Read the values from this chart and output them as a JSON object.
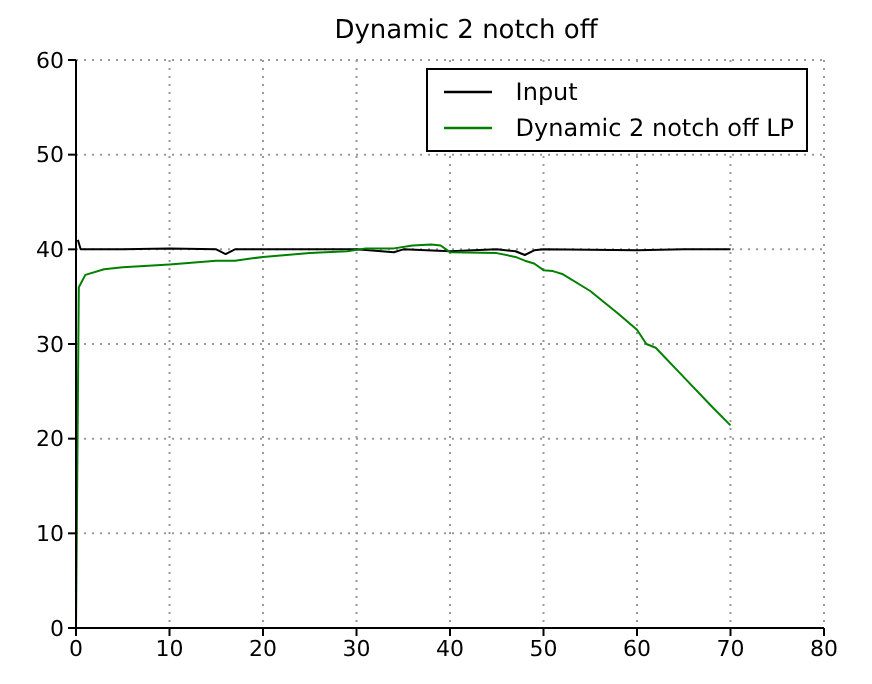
{
  "chart_data": {
    "type": "line",
    "title": "Dynamic 2 notch off",
    "xlim": [
      0,
      80
    ],
    "xticks": [
      0,
      10,
      20,
      30,
      40,
      50,
      60,
      70,
      80
    ],
    "ylim": [
      0,
      60
    ],
    "yticks": [
      0,
      10,
      20,
      30,
      40,
      50,
      60
    ],
    "grid": true,
    "legend": "top right",
    "marker": "none",
    "line_style": "solid",
    "series": [
      {
        "name": "Input",
        "color": "#000000",
        "x": [
          0.2,
          0.5,
          5,
          10,
          15,
          16,
          17,
          25,
          30,
          34,
          35,
          40,
          45,
          47,
          48,
          49,
          50,
          60,
          65,
          70
        ],
        "values": [
          41,
          40,
          40,
          40.1,
          40,
          39.5,
          40,
          40,
          40,
          39.7,
          40,
          39.8,
          40,
          39.8,
          39.4,
          39.9,
          40,
          39.9,
          40,
          40
        ]
      },
      {
        "name": "Dynamic 2 notch off LP",
        "color": "#008000",
        "x": [
          0,
          0.3,
          1,
          3,
          5,
          10,
          15,
          17,
          20,
          25,
          29,
          31,
          34,
          36,
          38,
          39,
          40,
          45,
          47,
          48,
          49,
          50,
          51,
          52,
          55,
          58,
          60,
          61,
          62,
          65,
          68,
          70
        ],
        "values": [
          0,
          36,
          37.3,
          37.9,
          38.1,
          38.4,
          38.8,
          38.8,
          39.2,
          39.6,
          39.8,
          40.1,
          40.1,
          40.4,
          40.5,
          40.4,
          39.7,
          39.6,
          39.2,
          38.8,
          38.5,
          37.8,
          37.7,
          37.4,
          35.6,
          33.2,
          31.5,
          30,
          29.6,
          26.5,
          23.4,
          21.4
        ]
      }
    ]
  }
}
